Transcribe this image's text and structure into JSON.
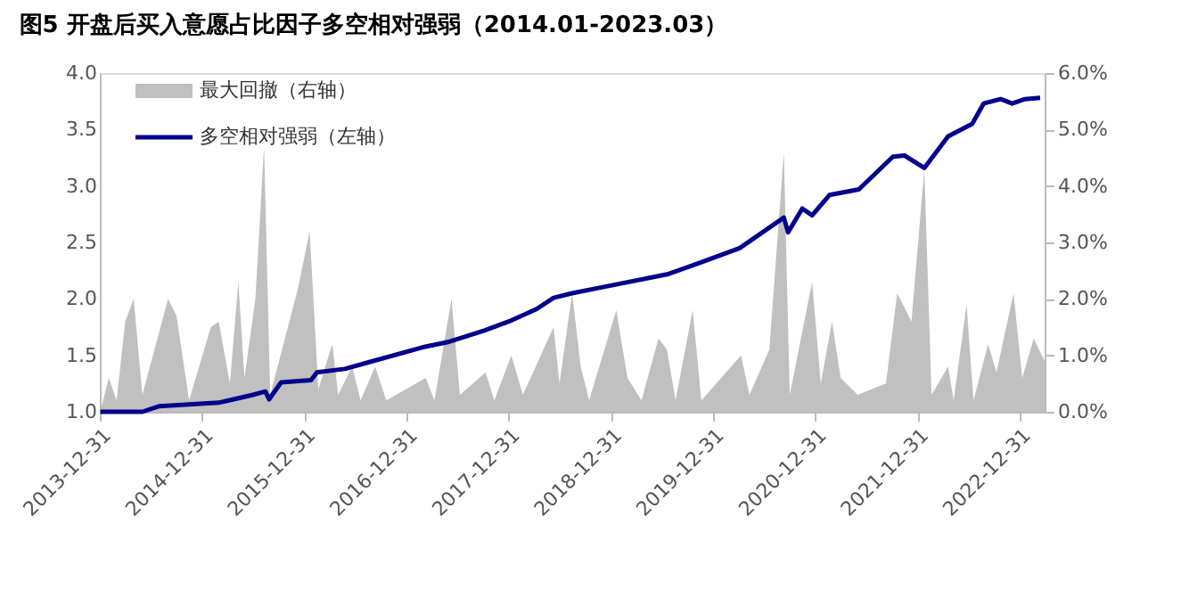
{
  "chart_data": {
    "type": "line",
    "title": "图5  开盘后买入意愿占比因子多空相对强弱（2014.01-2023.03）",
    "xlim": [
      "2013-12-31",
      "2023-03-31"
    ],
    "xticks": [
      "2013-12-31",
      "2014-12-31",
      "2015-12-31",
      "2016-12-31",
      "2017-12-31",
      "2018-12-31",
      "2019-12-31",
      "2020-12-31",
      "2021-12-31",
      "2022-12-31"
    ],
    "ylim": [
      1.0,
      4.0
    ],
    "yticks": [
      {
        "value": 1.0,
        "label": "1.0"
      },
      {
        "value": 1.5,
        "label": "1.5"
      },
      {
        "value": 2.0,
        "label": "2.0"
      },
      {
        "value": 2.5,
        "label": "2.5"
      },
      {
        "value": 3.0,
        "label": "3.0"
      },
      {
        "value": 3.5,
        "label": "3.5"
      },
      {
        "value": 4.0,
        "label": "4.0"
      }
    ],
    "y2lim": [
      0,
      6
    ],
    "y2ticks": [
      {
        "value": 0,
        "label": "0.0%"
      },
      {
        "value": 1,
        "label": "1.0%"
      },
      {
        "value": 2,
        "label": "2.0%"
      },
      {
        "value": 3,
        "label": "3.0%"
      },
      {
        "value": 4,
        "label": "4.0%"
      },
      {
        "value": 5,
        "label": "5.0%"
      },
      {
        "value": 6,
        "label": "6.0%"
      }
    ],
    "grid": false,
    "legend": "top left",
    "series": [
      {
        "name": "最大回撤（右轴）",
        "type": "area",
        "axis": "y2",
        "color": "#c0c0c0",
        "x": [
          "2014-01-02",
          "2014-02-01",
          "2014-03-01",
          "2014-04-01",
          "2014-05-01",
          "2014-06-01",
          "2014-09-01",
          "2014-10-01",
          "2014-11-15",
          "2015-02-01",
          "2015-03-01",
          "2015-04-10",
          "2015-05-10",
          "2015-06-01",
          "2015-07-10",
          "2015-08-10",
          "2015-09-01",
          "2015-12-10",
          "2016-01-20",
          "2016-02-20",
          "2016-04-10",
          "2016-05-01",
          "2016-06-20",
          "2016-07-20",
          "2016-09-10",
          "2016-10-20",
          "2017-03-10",
          "2017-04-10",
          "2017-06-10",
          "2017-07-10",
          "2017-10-10",
          "2017-11-10",
          "2018-01-10",
          "2018-02-20",
          "2018-06-10",
          "2018-07-01",
          "2018-08-15",
          "2018-09-15",
          "2018-10-15",
          "2019-01-20",
          "2019-03-01",
          "2019-04-20",
          "2019-06-20",
          "2019-07-20",
          "2019-08-20",
          "2019-10-20",
          "2019-11-20",
          "2020-04-10",
          "2020-05-10",
          "2020-07-20",
          "2020-09-10",
          "2020-10-01",
          "2020-12-20",
          "2021-01-20",
          "2021-03-01",
          "2021-04-01",
          "2021-06-01",
          "2021-09-10",
          "2021-10-20",
          "2021-12-10",
          "2022-01-25",
          "2022-02-20",
          "2022-04-20",
          "2022-05-10",
          "2022-06-25",
          "2022-07-20",
          "2022-09-10",
          "2022-10-10",
          "2022-12-10",
          "2023-01-10",
          "2023-02-20",
          "2023-03-31"
        ],
        "values": [
          0.0,
          0.6,
          0.2,
          1.6,
          2.0,
          0.3,
          2.0,
          1.7,
          0.2,
          1.5,
          1.6,
          0.5,
          2.3,
          0.6,
          2.0,
          4.7,
          0.3,
          2.2,
          3.2,
          0.4,
          1.2,
          0.3,
          0.8,
          0.2,
          0.8,
          0.2,
          0.6,
          0.2,
          2.0,
          0.3,
          0.7,
          0.2,
          1.0,
          0.3,
          1.5,
          0.5,
          2.1,
          0.8,
          0.2,
          1.8,
          0.6,
          0.2,
          1.3,
          1.1,
          0.2,
          1.8,
          0.2,
          1.0,
          0.3,
          1.1,
          4.6,
          0.3,
          2.3,
          0.5,
          1.6,
          0.6,
          0.3,
          0.5,
          2.1,
          1.6,
          4.3,
          0.3,
          0.8,
          0.2,
          1.9,
          0.2,
          1.2,
          0.7,
          2.1,
          0.6,
          1.3,
          0.9
        ]
      },
      {
        "name": "多空相对强弱（左轴）",
        "axis": "y",
        "color": "#00008b",
        "x": [
          "2014-01-02",
          "2014-06-01",
          "2014-08-01",
          "2015-02-28",
          "2015-07-01",
          "2015-08-15",
          "2015-08-28",
          "2015-10-10",
          "2016-01-25",
          "2016-02-15",
          "2016-05-25",
          "2016-08-20",
          "2017-02-25",
          "2017-06-01",
          "2017-10-05",
          "2018-01-01",
          "2018-04-10",
          "2018-06-10",
          "2018-08-15",
          "2018-12-15",
          "2019-07-25",
          "2019-11-25",
          "2020-04-05",
          "2020-09-10",
          "2020-09-25",
          "2020-11-15",
          "2020-12-20",
          "2021-02-20",
          "2021-06-05",
          "2021-10-05",
          "2021-11-15",
          "2022-01-25",
          "2022-04-20",
          "2022-07-15",
          "2022-08-25",
          "2022-10-25",
          "2022-12-05",
          "2023-01-20",
          "2023-03-15"
        ],
        "values": [
          1.0,
          1.0,
          1.05,
          1.08,
          1.15,
          1.18,
          1.11,
          1.26,
          1.28,
          1.35,
          1.38,
          1.44,
          1.57,
          1.62,
          1.72,
          1.8,
          1.91,
          2.01,
          2.05,
          2.11,
          2.22,
          2.33,
          2.45,
          2.72,
          2.59,
          2.8,
          2.74,
          2.92,
          2.97,
          3.26,
          3.27,
          3.16,
          3.44,
          3.55,
          3.73,
          3.77,
          3.73,
          3.77,
          3.78
        ]
      }
    ]
  }
}
